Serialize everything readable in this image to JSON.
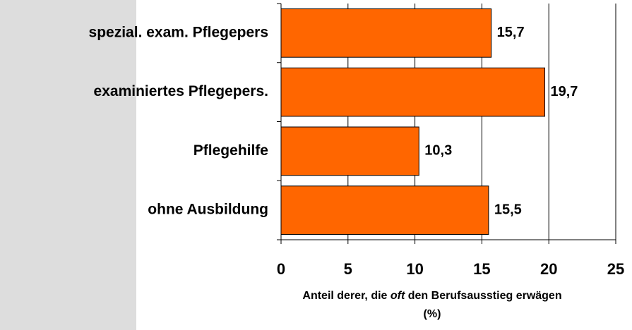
{
  "chart_data": {
    "type": "bar",
    "orientation": "horizontal",
    "categories": [
      "spezial. exam. Pflegepers",
      "examiniertes Pflegepers.",
      "Pflegehilfe",
      "ohne Ausbildung"
    ],
    "values": [
      15.7,
      19.7,
      10.3,
      15.5
    ],
    "value_labels": [
      "15,7",
      "19,7",
      "10,3",
      "15,5"
    ],
    "color": "#ff6600",
    "xlim": [
      0,
      25
    ],
    "xticks": [
      0,
      5,
      10,
      15,
      20,
      25
    ],
    "grid": true,
    "xlabel": [
      "Anteil derer, die ",
      "oft",
      " den Berufsausstieg erwägen",
      "(%)"
    ]
  }
}
